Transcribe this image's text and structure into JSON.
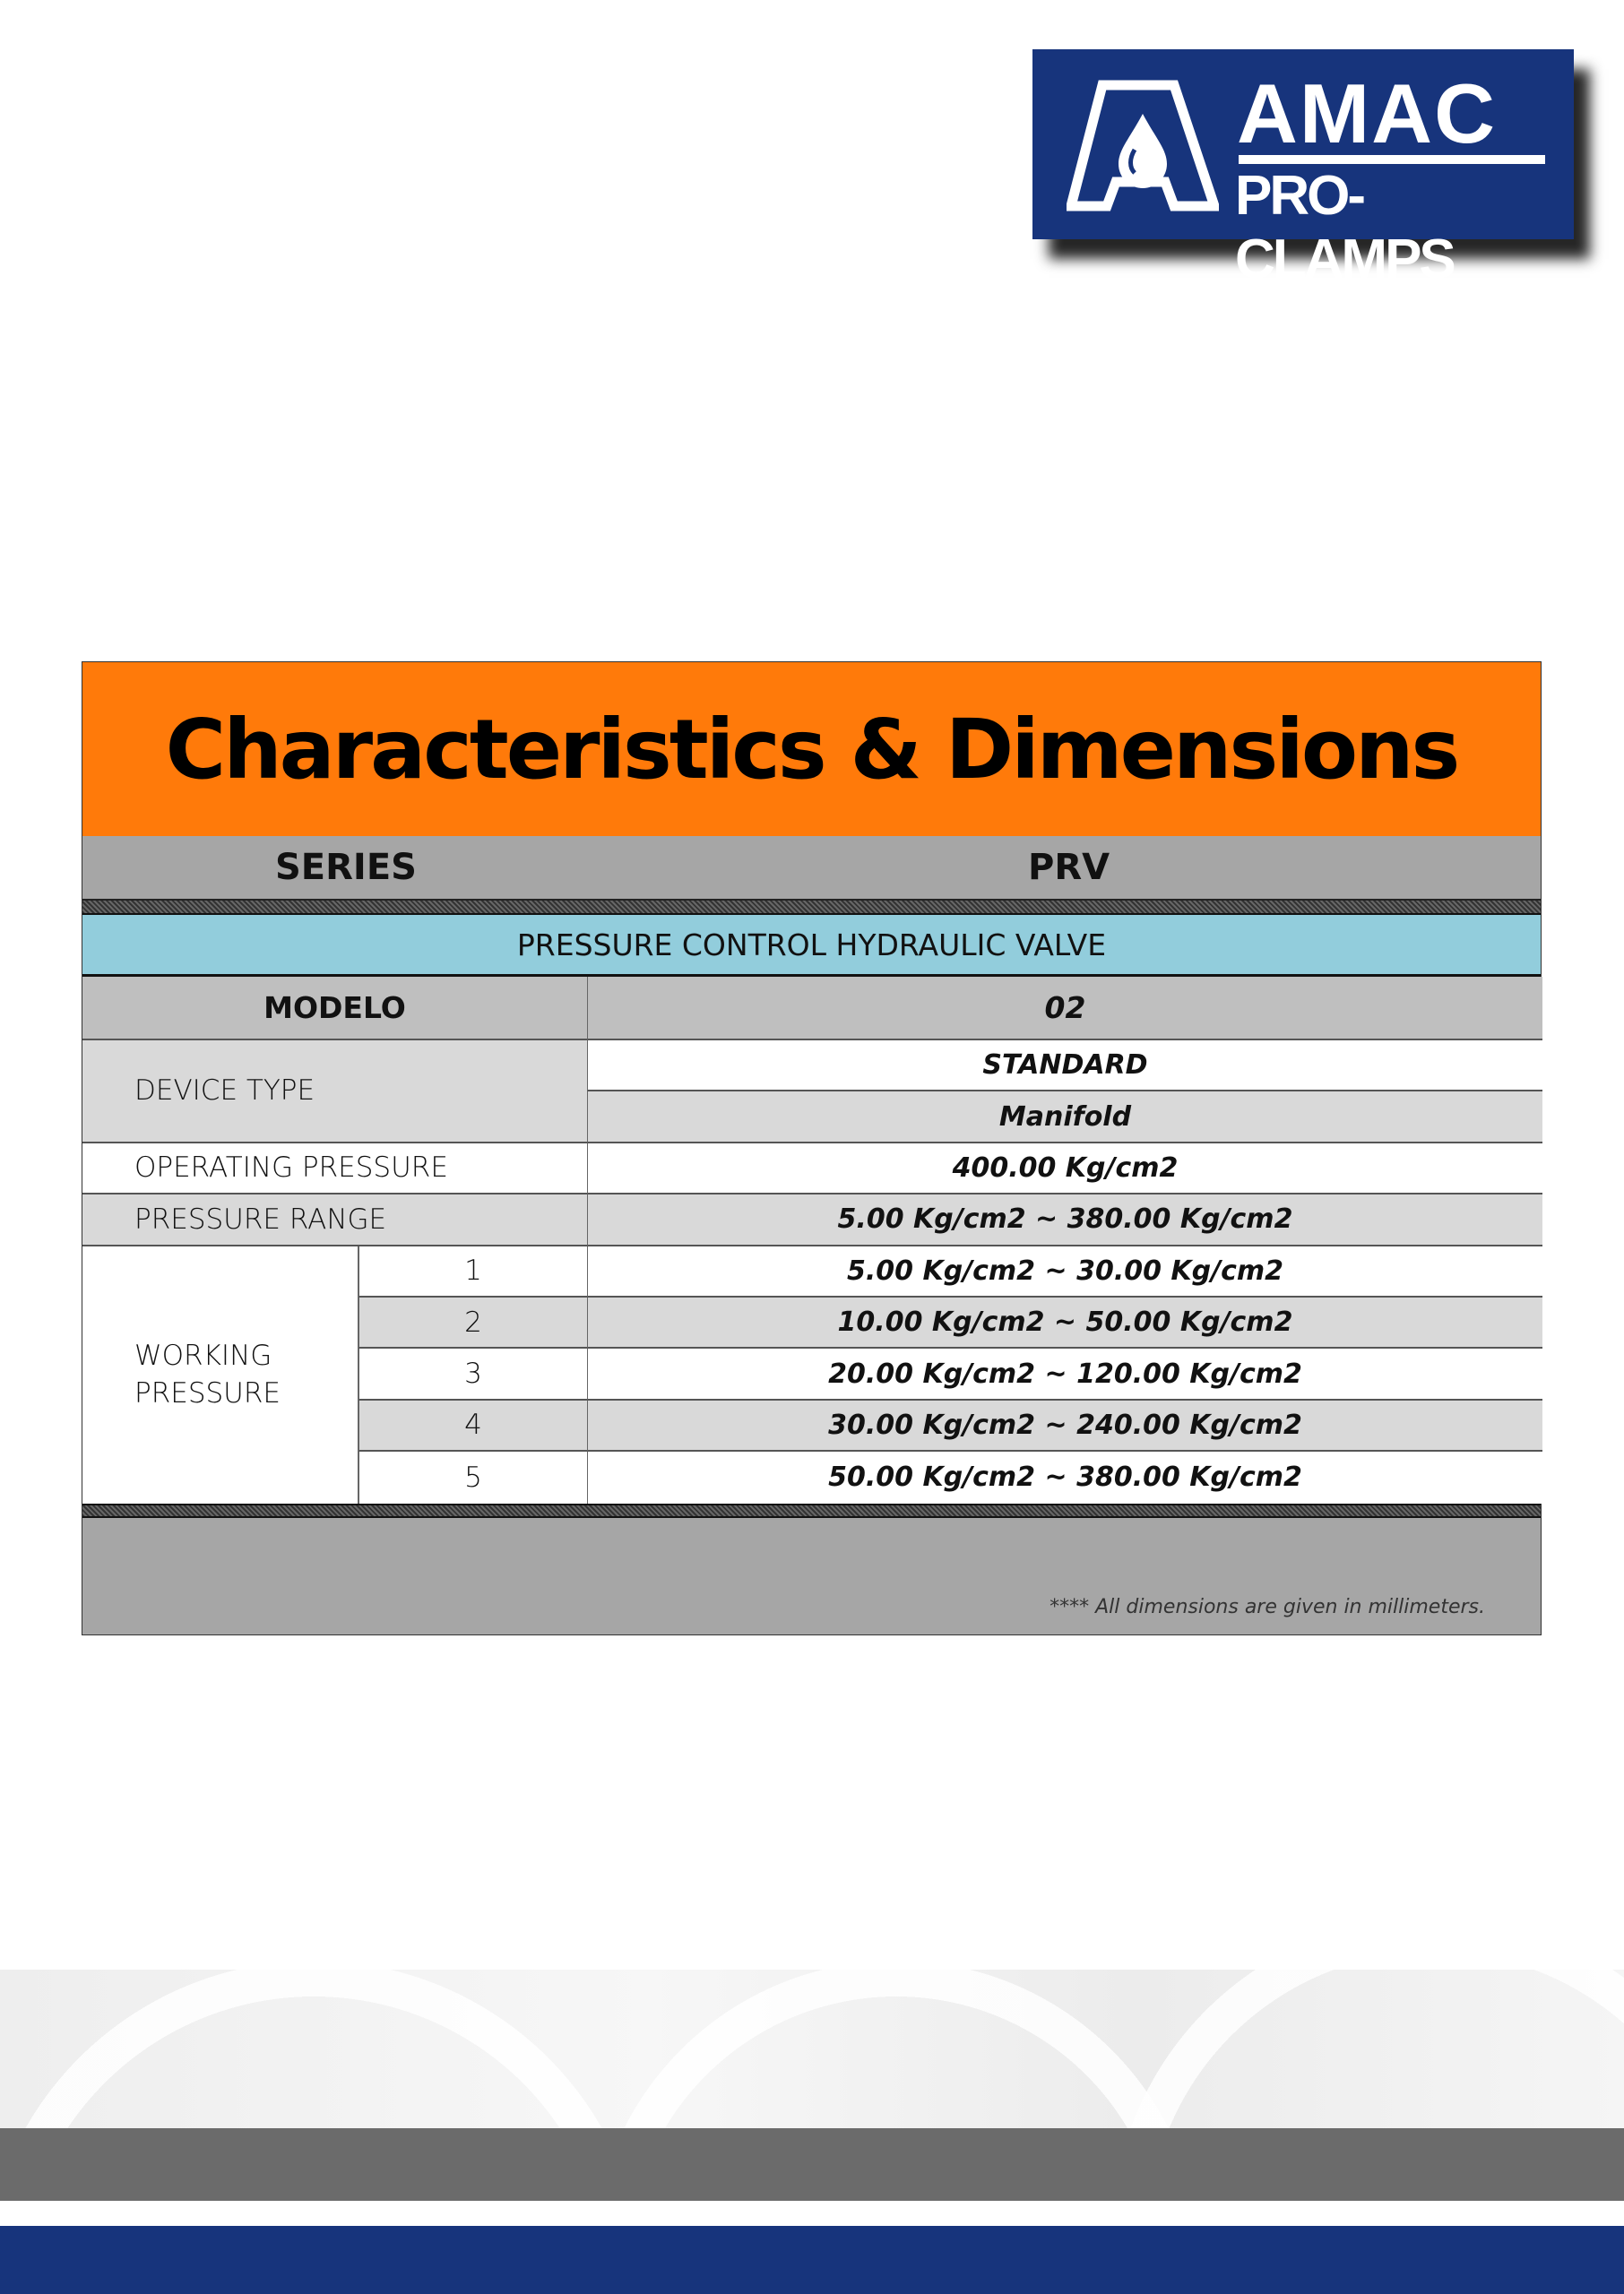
{
  "logo": {
    "line1": "AMAC",
    "line2": "PRO-CLAMPS",
    "color": "#17347c"
  },
  "title": "Characteristics & Dimensions",
  "series": {
    "label": "SERIES",
    "value": "PRV"
  },
  "product": "PRESSURE CONTROL HYDRAULIC VALVE",
  "modelo": {
    "label": "MODELO",
    "value": "02"
  },
  "device_type": {
    "label": "DEVICE TYPE",
    "values": [
      "STANDARD",
      "Manifold"
    ]
  },
  "operating_pressure": {
    "label": "OPERATING PRESSURE",
    "value": "400.00 Kg/cm2"
  },
  "pressure_range": {
    "label": "PRESSURE RANGE",
    "value": "5.00 Kg/cm2 ~ 380.00 Kg/cm2"
  },
  "working_pressure": {
    "label": "WORKING PRESSURE",
    "rows": [
      {
        "n": "1",
        "value": "5.00 Kg/cm2 ~ 30.00 Kg/cm2"
      },
      {
        "n": "2",
        "value": "10.00 Kg/cm2 ~ 50.00 Kg/cm2"
      },
      {
        "n": "3",
        "value": "20.00 Kg/cm2 ~ 120.00 Kg/cm2"
      },
      {
        "n": "4",
        "value": "30.00 Kg/cm2 ~ 240.00 Kg/cm2"
      },
      {
        "n": "5",
        "value": "50.00 Kg/cm2 ~ 380.00 Kg/cm2"
      }
    ]
  },
  "note": "****  All dimensions are given in millimeters.",
  "colors": {
    "header": "#ff7a0a",
    "product_band": "#92cddc",
    "navy": "#17347c"
  }
}
